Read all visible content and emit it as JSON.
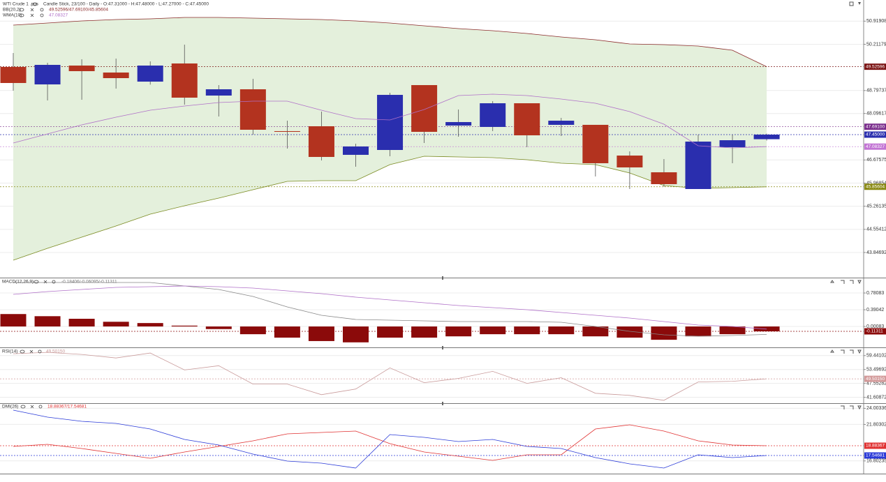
{
  "chart_data": [
    {
      "type": "candlestick",
      "title": "WTI Crude 1 .pos",
      "subtitle": "Candle Stick, 23/100 - Daily - O:47.31000 - H:47.48000 - L:47.27000 - C:47.45000",
      "bb_name": "BB(20,2)",
      "bb_values": "49.52596/47.69100/45.85604",
      "wma_name": "WMA(10)",
      "wma_value": "47.08327",
      "categories": [
        null,
        null,
        null,
        null,
        null,
        null,
        null,
        null,
        null,
        null,
        null,
        null,
        null,
        null,
        null,
        null,
        null,
        null,
        null,
        null,
        null,
        null,
        null
      ],
      "open": [
        49.518,
        48.985,
        49.561,
        49.348,
        49.07,
        49.625,
        48.644,
        48.836,
        47.557,
        47.706,
        46.832,
        46.981,
        48.964,
        47.727,
        47.685,
        48.409,
        47.749,
        47.749,
        46.81,
        46.299,
        45.787,
        47.066,
        47.31
      ],
      "high": [
        49.945,
        49.646,
        49.753,
        49.774,
        49.689,
        50.201,
        48.964,
        49.156,
        47.876,
        48.154,
        47.173,
        48.729,
        48.964,
        48.218,
        48.473,
        48.409,
        47.962,
        47.749,
        46.938,
        46.704,
        47.45,
        47.45,
        47.48
      ],
      "low": [
        48.793,
        48.495,
        48.516,
        48.857,
        48.979,
        48.367,
        48.004,
        47.45,
        47.024,
        46.661,
        46.469,
        46.789,
        47.194,
        47.386,
        47.557,
        47.066,
        47.407,
        46.171,
        45.787,
        45.851,
        45.787,
        46.576,
        47.27
      ],
      "close": [
        49.028,
        49.582,
        49.39,
        49.177,
        49.561,
        48.58,
        48.836,
        47.599,
        47.535,
        46.768,
        47.088,
        48.665,
        47.535,
        47.834,
        48.409,
        47.429,
        47.876,
        46.576,
        46.448,
        45.936,
        47.237,
        47.279,
        47.45
      ],
      "up_color": "#2a2eae",
      "down_color": "#b3331f",
      "band": {
        "color": "#e4f0dc",
        "upper": {
          "color": "#8b2a2a",
          "values": [
            50.798,
            50.862,
            50.925,
            50.968,
            50.989,
            51.032,
            51.032,
            51.011,
            50.989,
            50.968,
            50.925,
            50.862,
            50.776,
            50.691,
            50.627,
            50.542,
            50.435,
            50.35,
            50.222,
            50.201,
            50.158,
            50.03,
            49.526
          ]
        },
        "lower": {
          "color": "#7a8a20",
          "values": [
            43.612,
            43.975,
            44.316,
            44.657,
            45.019,
            45.275,
            45.51,
            45.766,
            46.021,
            46.043,
            46.043,
            46.533,
            46.789,
            46.768,
            46.746,
            46.682,
            46.576,
            46.533,
            46.277,
            45.893,
            45.808,
            45.83,
            45.856
          ]
        }
      },
      "lines": [
        {
          "color": "#b070c8",
          "values": [
            47.194,
            47.471,
            47.749,
            47.983,
            48.196,
            48.324,
            48.431,
            48.473,
            48.473,
            48.196,
            47.94,
            47.898,
            48.218,
            48.644,
            48.687,
            48.644,
            48.537,
            48.409,
            48.154,
            47.77,
            47.109,
            47.045,
            47.083
          ]
        }
      ],
      "ylim": [
        43.079,
        51.565
      ],
      "yticks": [
        50.91908,
        50.21179,
        48.79737,
        48.09617,
        46.67575,
        45.96854,
        45.26135,
        44.55412,
        43.84692
      ],
      "markers": [
        {
          "value": 49.52596,
          "label": "49.52596",
          "color": "#7b1414"
        },
        {
          "value": 47.691,
          "label": "47.69100",
          "color": "#7a2d8c"
        },
        {
          "value": 47.45,
          "label": "47.45000",
          "color": "#2a2eae"
        },
        {
          "value": 47.08327,
          "label": "47.08327",
          "color": "#c274d4"
        },
        {
          "value": 45.85604,
          "label": "45.85604",
          "color": "#8a8a14"
        }
      ]
    },
    {
      "type": "macd",
      "title": "MACD(12,26,9)",
      "legend": "-0.18406/-0.06095/-0.11311",
      "categories": [
        null,
        null,
        null,
        null,
        null,
        null,
        null,
        null,
        null,
        null,
        null,
        null,
        null,
        null,
        null,
        null,
        null,
        null,
        null,
        null,
        null,
        null,
        null
      ],
      "histogram": {
        "color": "#8b0a0a",
        "values": [
          0.29,
          0.24,
          0.18,
          0.11,
          0.08,
          0.02,
          -0.06,
          -0.18,
          -0.26,
          -0.34,
          -0.37,
          -0.26,
          -0.26,
          -0.23,
          -0.18,
          -0.18,
          -0.18,
          -0.23,
          -0.26,
          -0.31,
          -0.23,
          -0.18,
          -0.11311
        ]
      },
      "lines": [
        {
          "color": "#888888",
          "values": [
            1.025,
            1.025,
            1.025,
            1.025,
            1.025,
            0.944,
            0.863,
            0.7,
            0.456,
            0.261,
            0.163,
            0.147,
            0.131,
            0.115,
            0.115,
            0.115,
            0.098,
            0.001,
            -0.113,
            -0.194,
            -0.227,
            -0.211,
            -0.18406
          ]
        },
        {
          "color": "#b070c8",
          "values": [
            0.749,
            0.814,
            0.863,
            0.911,
            0.928,
            0.944,
            0.928,
            0.895,
            0.83,
            0.765,
            0.684,
            0.619,
            0.554,
            0.489,
            0.44,
            0.391,
            0.326,
            0.261,
            0.196,
            0.115,
            0.033,
            0.001,
            -0.06095
          ]
        }
      ],
      "ylim": [
        -0.487,
        1.123
      ],
      "yticks": [
        0.78083,
        0.39042,
        0.00083
      ],
      "markers": [
        {
          "value": -0.11311,
          "label": "-0.11311",
          "color": "#8b0a0a"
        }
      ]
    },
    {
      "type": "line",
      "title": "RSI(14)",
      "legend": "49.50150",
      "categories": [
        null,
        null,
        null,
        null,
        null,
        null,
        null,
        null,
        null,
        null,
        null,
        null,
        null,
        null,
        null,
        null,
        null,
        null,
        null,
        null,
        null,
        null,
        null
      ],
      "lines": [
        {
          "color": "#c99a9a",
          "values": [
            60.24,
            60.85,
            59.94,
            58.43,
            60.54,
            53.29,
            55.1,
            47.25,
            47.25,
            42.72,
            45.14,
            54.2,
            47.86,
            49.67,
            52.69,
            47.55,
            49.97,
            43.32,
            42.42,
            40.3,
            48.16,
            48.46,
            49.5015
          ]
        }
      ],
      "ylim": [
        39.09,
        62.66
      ],
      "yticks": [
        59.44102,
        53.49692,
        47.55282,
        41.60872
      ],
      "markers": [
        {
          "value": 49.5015,
          "label": "49.50150",
          "color": "#d39a9a"
        }
      ]
    },
    {
      "type": "line",
      "title": "DMI(26)",
      "legend": "18.88367/17.54681",
      "categories": [
        null,
        null,
        null,
        null,
        null,
        null,
        null,
        null,
        null,
        null,
        null,
        null,
        null,
        null,
        null,
        null,
        null,
        null,
        null,
        null,
        null,
        null,
        null
      ],
      "lines": [
        {
          "color": "#e03030",
          "values": [
            18.788,
            19.075,
            18.501,
            17.833,
            17.164,
            18.024,
            18.788,
            19.552,
            20.507,
            20.698,
            20.889,
            19.17,
            18.024,
            17.451,
            16.878,
            17.642,
            17.642,
            21.176,
            21.749,
            20.889,
            19.552,
            18.979,
            18.88367
          ]
        },
        {
          "color": "#2a3ad8",
          "values": [
            23.754,
            22.799,
            22.226,
            21.94,
            21.176,
            19.743,
            18.979,
            17.738,
            16.782,
            16.5,
            15.827,
            20.412,
            20.03,
            19.457,
            19.743,
            18.788,
            18.501,
            17.26,
            16.4,
            15.827,
            17.642,
            17.26,
            17.54681
          ]
        }
      ],
      "ylim": [
        15.159,
        24.614
      ],
      "yticks": [
        24.00336,
        21.80302,
        16.80235
      ],
      "markers": [
        {
          "value": 18.88367,
          "label": "18.88367",
          "color": "#e03030"
        },
        {
          "value": 17.54681,
          "label": "17.54681",
          "color": "#2a3ad8"
        }
      ]
    }
  ]
}
